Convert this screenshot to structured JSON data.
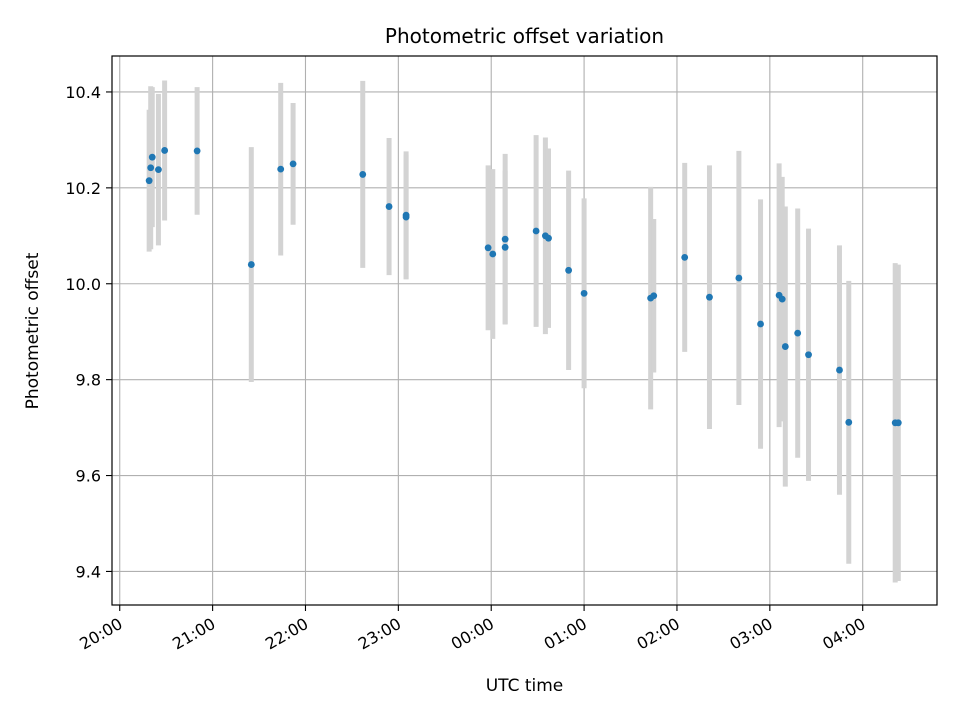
{
  "chart_data": {
    "type": "scatter",
    "title": "Photometric offset variation",
    "xlabel": "UTC time",
    "ylabel": "Photometric offset",
    "x_tick_labels": [
      "20:00",
      "21:00",
      "22:00",
      "23:00",
      "00:00",
      "01:00",
      "02:00",
      "03:00",
      "04:00"
    ],
    "y_ticks": [
      9.4,
      9.6,
      9.8,
      10.0,
      10.2,
      10.4
    ],
    "y_tick_labels": [
      "9.4",
      "9.6",
      "9.8",
      "10.0",
      "10.2",
      "10.4"
    ],
    "xlim": [
      "19:55",
      "04:48"
    ],
    "ylim": [
      9.33,
      10.475
    ],
    "grid": true,
    "colors": {
      "points": "#1f77b4",
      "errorbars": "#d3d3d3",
      "grid": "#b0b0b0"
    },
    "points": [
      {
        "time": "20:19",
        "y": 10.215,
        "err": 0.148
      },
      {
        "time": "20:20",
        "y": 10.242,
        "err": 0.17
      },
      {
        "time": "20:21",
        "y": 10.264,
        "err": 0.146
      },
      {
        "time": "20:25",
        "y": 10.238,
        "err": 0.158
      },
      {
        "time": "20:29",
        "y": 10.278,
        "err": 0.146
      },
      {
        "time": "20:50",
        "y": 10.277,
        "err": 0.133
      },
      {
        "time": "21:25",
        "y": 10.04,
        "err": 0.245
      },
      {
        "time": "21:44",
        "y": 10.239,
        "err": 0.18
      },
      {
        "time": "21:52",
        "y": 10.25,
        "err": 0.127
      },
      {
        "time": "22:37",
        "y": 10.228,
        "err": 0.195
      },
      {
        "time": "22:54",
        "y": 10.161,
        "err": 0.143
      },
      {
        "time": "23:05",
        "y": 10.143,
        "err": 0.133
      },
      {
        "time": "23:05",
        "y": 10.139,
        "err": 0.13
      },
      {
        "time": "23:58",
        "y": 10.075,
        "err": 0.172
      },
      {
        "time": "00:01",
        "y": 10.062,
        "err": 0.177
      },
      {
        "time": "00:09",
        "y": 10.093,
        "err": 0.178
      },
      {
        "time": "00:09",
        "y": 10.076,
        "err": 0.16
      },
      {
        "time": "00:29",
        "y": 10.11,
        "err": 0.2
      },
      {
        "time": "00:35",
        "y": 10.1,
        "err": 0.205
      },
      {
        "time": "00:37",
        "y": 10.095,
        "err": 0.187
      },
      {
        "time": "00:50",
        "y": 10.028,
        "err": 0.208
      },
      {
        "time": "01:00",
        "y": 9.98,
        "err": 0.198
      },
      {
        "time": "01:43",
        "y": 9.97,
        "err": 0.232
      },
      {
        "time": "01:45",
        "y": 9.975,
        "err": 0.16
      },
      {
        "time": "02:05",
        "y": 10.055,
        "err": 0.197
      },
      {
        "time": "02:21",
        "y": 9.972,
        "err": 0.275
      },
      {
        "time": "02:40",
        "y": 10.012,
        "err": 0.265
      },
      {
        "time": "02:54",
        "y": 9.916,
        "err": 0.26
      },
      {
        "time": "03:06",
        "y": 9.976,
        "err": 0.275
      },
      {
        "time": "03:08",
        "y": 9.968,
        "err": 0.255
      },
      {
        "time": "03:10",
        "y": 9.869,
        "err": 0.292
      },
      {
        "time": "03:18",
        "y": 9.897,
        "err": 0.26
      },
      {
        "time": "03:25",
        "y": 9.852,
        "err": 0.263
      },
      {
        "time": "03:45",
        "y": 9.82,
        "err": 0.26
      },
      {
        "time": "03:51",
        "y": 9.711,
        "err": 0.295
      },
      {
        "time": "04:21",
        "y": 9.71,
        "err": 0.333
      },
      {
        "time": "04:23",
        "y": 9.71,
        "err": 0.33
      }
    ]
  }
}
